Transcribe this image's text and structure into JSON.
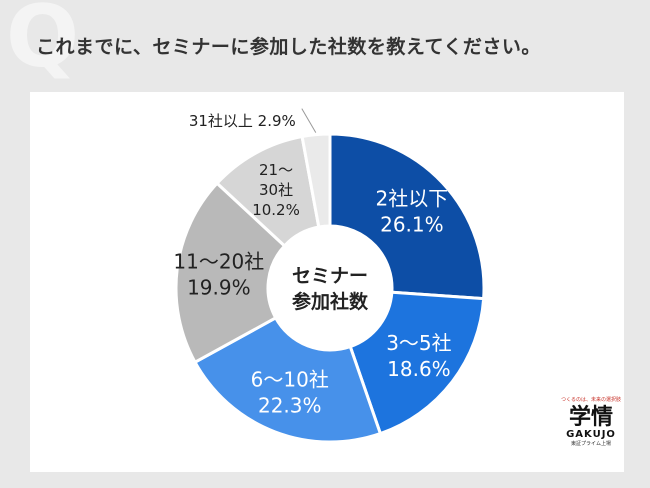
{
  "question": "これまでに、セミナーに参加した社数を教えてください。",
  "q_mark": "Q",
  "brand": {
    "tagline": "つくるのは、未来の選択肢",
    "logo": "学情",
    "logo_en": "GAKUJO",
    "subline": "東証プライム上場"
  },
  "chart_data": {
    "type": "pie",
    "donut": true,
    "center_label": [
      "セミナー",
      "参加社数"
    ],
    "slices": [
      {
        "label": "2社以下",
        "value": 26.1,
        "pct_text": "26.1%",
        "color": "#0d4ea6",
        "text_color": "#ffffff",
        "lines": [
          "2社以下",
          "26.1%"
        ]
      },
      {
        "label": "3～5社",
        "value": 18.6,
        "pct_text": "18.6%",
        "color": "#1d74de",
        "text_color": "#ffffff",
        "lines": [
          "3～5社",
          "18.6%"
        ]
      },
      {
        "label": "6～10社",
        "value": 22.3,
        "pct_text": "22.3%",
        "color": "#4791ea",
        "text_color": "#ffffff",
        "lines": [
          "6～10社",
          "22.3%"
        ]
      },
      {
        "label": "11～20社",
        "value": 19.9,
        "pct_text": "19.9%",
        "color": "#b9b9b9",
        "text_color": "#222222",
        "lines": [
          "11～20社",
          "19.9%"
        ]
      },
      {
        "label": "21～30社",
        "value": 10.2,
        "pct_text": "10.2%",
        "color": "#d6d6d6",
        "text_color": "#222222",
        "lines": [
          "21～",
          "30社",
          "10.2%"
        ]
      },
      {
        "label": "31社以上",
        "value": 2.9,
        "pct_text": "2.9%",
        "color": "#eaeaea",
        "text_color": "#222222",
        "lines": [
          "31社以上 2.9%"
        ],
        "external": true
      }
    ]
  }
}
